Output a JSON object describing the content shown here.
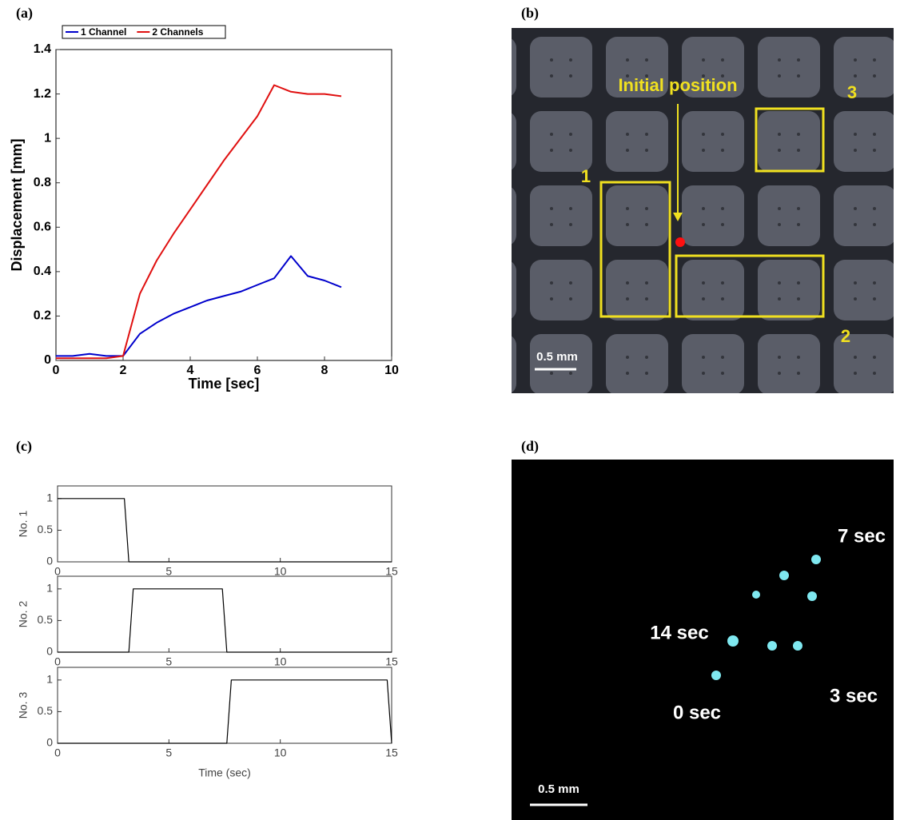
{
  "panels": [
    "(a)",
    "(b)",
    "(c)",
    "(d)"
  ],
  "images": [
    {
      "labels": [
        "Initial position",
        "1",
        "2",
        "3",
        "0.5 mm"
      ]
    },
    {
      "labels": [
        "7 sec",
        "14 sec",
        "3 sec",
        "0 sec",
        "0.5 mm"
      ]
    }
  ],
  "chart_data": [
    {
      "type": "line",
      "x_label": "Time [sec]",
      "y_label": "Displacement [mm]",
      "x": [
        0,
        0.5,
        1,
        1.5,
        2,
        2.5,
        3,
        3.5,
        4,
        4.5,
        5,
        5.5,
        6,
        6.5,
        7,
        7.5,
        8,
        8.5
      ],
      "series": [
        {
          "name": "1 Channel",
          "color": "#0000cc",
          "values": [
            0.02,
            0.02,
            0.03,
            0.02,
            0.02,
            0.12,
            0.17,
            0.21,
            0.24,
            0.27,
            0.29,
            0.31,
            0.34,
            0.37,
            0.47,
            0.38,
            0.36,
            0.33
          ]
        },
        {
          "name": "2 Channels",
          "color": "#e01010",
          "values": [
            0.01,
            0.01,
            0.01,
            0.01,
            0.02,
            0.3,
            0.45,
            0.57,
            0.68,
            0.79,
            0.9,
            1.0,
            1.1,
            1.24,
            1.21,
            1.2,
            1.2,
            1.19
          ]
        }
      ],
      "xlim": [
        0,
        10
      ],
      "xticks": [
        0,
        2,
        4,
        6,
        8,
        10
      ],
      "ylim": [
        0,
        1.4
      ],
      "yticks": [
        0,
        0.2,
        0.4,
        0.6,
        0.8,
        1,
        1.2,
        1.4
      ],
      "legend": "upper-left"
    },
    {
      "type": "line",
      "y_label": "No. 1",
      "color": "#000000",
      "x": [
        0,
        3,
        3.2,
        15
      ],
      "values": [
        1,
        1,
        0,
        0
      ],
      "xlim": [
        0,
        15
      ],
      "xticks": [
        0,
        5,
        10,
        15
      ],
      "ylim": [
        0,
        1.2
      ],
      "yticks": [
        0,
        0.5,
        1
      ]
    },
    {
      "type": "line",
      "y_label": "No. 2",
      "color": "#000000",
      "x": [
        0,
        3.2,
        3.4,
        7.4,
        7.6,
        15
      ],
      "values": [
        0,
        0,
        1,
        1,
        0,
        0
      ],
      "xlim": [
        0,
        15
      ],
      "xticks": [
        0,
        5,
        10,
        15
      ],
      "ylim": [
        0,
        1.2
      ],
      "yticks": [
        0,
        0.5,
        1
      ]
    },
    {
      "type": "line",
      "x_label": "Time (sec)",
      "y_label": "No. 3",
      "color": "#000000",
      "x": [
        0,
        7.6,
        7.8,
        14.8,
        15
      ],
      "values": [
        0,
        0,
        1,
        1,
        0
      ],
      "xlim": [
        0,
        15
      ],
      "xticks": [
        0,
        5,
        10,
        15
      ],
      "ylim": [
        0,
        1.2
      ],
      "yticks": [
        0,
        0.5,
        1
      ]
    }
  ]
}
